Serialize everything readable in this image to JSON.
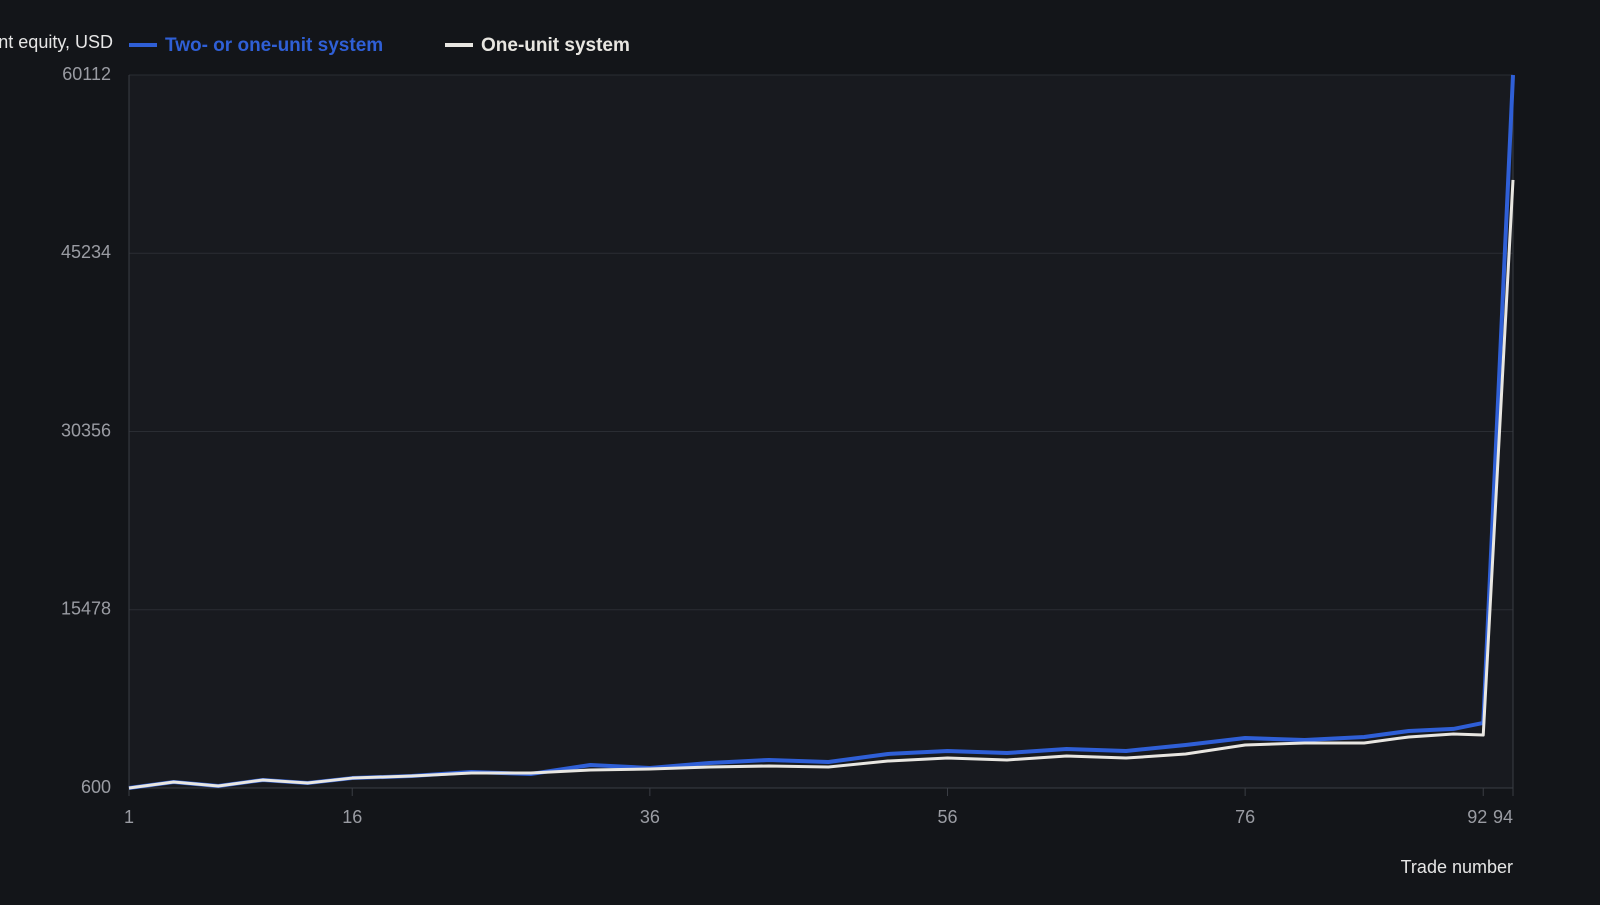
{
  "chart_data": {
    "type": "line",
    "y_label": "nt equity, USD",
    "x_label": "Trade number",
    "x": [
      1,
      4,
      7,
      10,
      13,
      16,
      20,
      24,
      28,
      32,
      36,
      40,
      44,
      48,
      52,
      56,
      60,
      64,
      68,
      72,
      76,
      80,
      84,
      87,
      90,
      92,
      94
    ],
    "series": [
      {
        "name": "Two- or one-unit system",
        "color": "#2f5fd6",
        "values": [
          600,
          1100,
          770,
          1270,
          1020,
          1430,
          1600,
          1940,
          1770,
          2520,
          2270,
          2690,
          2940,
          2770,
          3440,
          3690,
          3520,
          3860,
          3690,
          4190,
          4770,
          4610,
          4860,
          5360,
          5530,
          6030,
          60112
        ]
      },
      {
        "name": "One-unit system",
        "color": "#e8e6e1",
        "values": [
          600,
          1100,
          770,
          1270,
          1020,
          1430,
          1600,
          1850,
          1850,
          2100,
          2190,
          2350,
          2440,
          2350,
          2850,
          3100,
          2940,
          3270,
          3100,
          3440,
          4190,
          4360,
          4360,
          4860,
          5110,
          5020,
          51350
        ]
      }
    ],
    "xlim": [
      1,
      94
    ],
    "xticks": [
      1,
      16,
      36,
      56,
      76,
      92,
      94
    ],
    "ylim": [
      600,
      60112
    ],
    "yticks": [
      600,
      15478,
      30356,
      45234,
      60112
    ],
    "grid": true
  }
}
